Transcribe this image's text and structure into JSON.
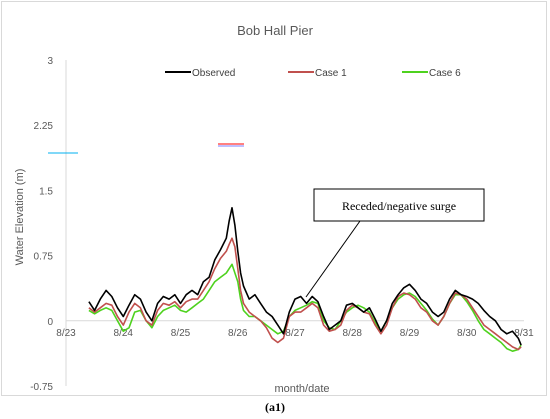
{
  "chart_data": {
    "type": "line",
    "title": "Bob Hall Pier",
    "xlabel": "month/date",
    "ylabel": "Water Elevation (m)",
    "ylim": [
      -0.75,
      3
    ],
    "yticks": [
      "3",
      "2.25",
      "1.5",
      "0.75",
      "0",
      "-0.75"
    ],
    "ytick_values": [
      3,
      2.25,
      1.5,
      0.75,
      0,
      -0.75
    ],
    "xlim": [
      0,
      8
    ],
    "xticks": [
      "8/23",
      "8/24",
      "8/25",
      "8/26",
      "8/27",
      "8/28",
      "8/29",
      "8/30",
      "8/31"
    ],
    "legend_position": "top",
    "annotation": "Receded/negative surge",
    "series": [
      {
        "name": "Observed",
        "color": "#000000",
        "x": [
          0.4,
          0.5,
          0.6,
          0.7,
          0.8,
          0.9,
          1.0,
          1.1,
          1.2,
          1.3,
          1.4,
          1.5,
          1.6,
          1.7,
          1.8,
          1.9,
          2.0,
          2.1,
          2.2,
          2.3,
          2.4,
          2.5,
          2.6,
          2.7,
          2.8,
          2.85,
          2.9,
          2.95,
          3.0,
          3.05,
          3.1,
          3.2,
          3.3,
          3.4,
          3.5,
          3.6,
          3.7,
          3.8,
          3.9,
          4.0,
          4.1,
          4.2,
          4.3,
          4.4,
          4.5,
          4.6,
          4.7,
          4.8,
          4.9,
          5.0,
          5.1,
          5.2,
          5.3,
          5.4,
          5.5,
          5.6,
          5.7,
          5.8,
          5.9,
          6.0,
          6.1,
          6.2,
          6.3,
          6.4,
          6.5,
          6.6,
          6.7,
          6.8,
          6.9,
          7.0,
          7.1,
          7.2,
          7.3,
          7.4,
          7.5,
          7.6,
          7.7,
          7.8,
          7.9,
          7.95
        ],
        "y": [
          0.22,
          0.12,
          0.25,
          0.35,
          0.28,
          0.15,
          0.05,
          0.18,
          0.3,
          0.25,
          0.1,
          0.0,
          0.2,
          0.28,
          0.25,
          0.3,
          0.2,
          0.3,
          0.35,
          0.3,
          0.45,
          0.5,
          0.7,
          0.82,
          0.95,
          1.15,
          1.3,
          1.1,
          0.8,
          0.55,
          0.4,
          0.25,
          0.3,
          0.2,
          0.1,
          0.05,
          -0.05,
          -0.15,
          0.1,
          0.25,
          0.28,
          0.2,
          0.28,
          0.22,
          0.05,
          -0.1,
          -0.05,
          0.0,
          0.18,
          0.2,
          0.15,
          0.1,
          0.15,
          0.02,
          -0.12,
          0.0,
          0.2,
          0.3,
          0.38,
          0.42,
          0.35,
          0.25,
          0.2,
          0.1,
          0.05,
          0.1,
          0.25,
          0.35,
          0.3,
          0.28,
          0.25,
          0.2,
          0.12,
          0.05,
          0.0,
          -0.1,
          -0.15,
          -0.12,
          -0.2,
          -0.28
        ]
      },
      {
        "name": "Case 1",
        "color": "#c0504d",
        "x": [
          0.4,
          0.5,
          0.6,
          0.7,
          0.8,
          0.9,
          1.0,
          1.1,
          1.2,
          1.3,
          1.4,
          1.5,
          1.6,
          1.7,
          1.8,
          1.9,
          2.0,
          2.1,
          2.2,
          2.3,
          2.4,
          2.5,
          2.6,
          2.7,
          2.8,
          2.85,
          2.9,
          2.95,
          3.0,
          3.05,
          3.1,
          3.2,
          3.3,
          3.4,
          3.5,
          3.6,
          3.7,
          3.8,
          3.9,
          4.0,
          4.1,
          4.2,
          4.3,
          4.4,
          4.5,
          4.6,
          4.7,
          4.8,
          4.9,
          5.0,
          5.1,
          5.2,
          5.3,
          5.4,
          5.5,
          5.6,
          5.7,
          5.8,
          5.9,
          6.0,
          6.1,
          6.2,
          6.3,
          6.4,
          6.5,
          6.6,
          6.7,
          6.8,
          6.9,
          7.0,
          7.1,
          7.2,
          7.3,
          7.4,
          7.5,
          7.6,
          7.7,
          7.8,
          7.9,
          7.95
        ],
        "y": [
          0.15,
          0.1,
          0.15,
          0.2,
          0.18,
          0.05,
          -0.05,
          0.1,
          0.2,
          0.15,
          0.0,
          -0.05,
          0.12,
          0.2,
          0.18,
          0.22,
          0.15,
          0.22,
          0.25,
          0.25,
          0.35,
          0.45,
          0.6,
          0.72,
          0.8,
          0.88,
          0.95,
          0.85,
          0.6,
          0.35,
          0.2,
          0.1,
          0.05,
          0.0,
          -0.08,
          -0.2,
          -0.25,
          -0.2,
          0.05,
          0.1,
          0.1,
          0.15,
          0.2,
          0.15,
          -0.05,
          -0.12,
          -0.1,
          -0.05,
          0.12,
          0.18,
          0.15,
          0.1,
          0.08,
          -0.05,
          -0.15,
          -0.05,
          0.15,
          0.28,
          0.32,
          0.3,
          0.25,
          0.15,
          0.1,
          0.0,
          -0.05,
          0.05,
          0.2,
          0.32,
          0.3,
          0.25,
          0.15,
          0.05,
          -0.05,
          -0.1,
          -0.15,
          -0.2,
          -0.25,
          -0.3,
          -0.33,
          -0.3
        ]
      },
      {
        "name": "Case 6",
        "color": "#4ed21e",
        "x": [
          0.4,
          0.5,
          0.6,
          0.7,
          0.8,
          0.9,
          1.0,
          1.1,
          1.2,
          1.3,
          1.4,
          1.5,
          1.6,
          1.7,
          1.8,
          1.9,
          2.0,
          2.1,
          2.2,
          2.3,
          2.4,
          2.5,
          2.6,
          2.7,
          2.8,
          2.85,
          2.9,
          2.95,
          3.0,
          3.05,
          3.1,
          3.2,
          3.3,
          3.4,
          3.5,
          3.6,
          3.7,
          3.8,
          3.9,
          4.0,
          4.1,
          4.2,
          4.3,
          4.4,
          4.5,
          4.6,
          4.7,
          4.8,
          4.9,
          5.0,
          5.1,
          5.2,
          5.3,
          5.4,
          5.5,
          5.6,
          5.7,
          5.8,
          5.9,
          6.0,
          6.1,
          6.2,
          6.3,
          6.4,
          6.5,
          6.6,
          6.7,
          6.8,
          6.9,
          7.0,
          7.1,
          7.2,
          7.3,
          7.4,
          7.5,
          7.6,
          7.7,
          7.8,
          7.9,
          7.95
        ],
        "y": [
          0.12,
          0.08,
          0.12,
          0.15,
          0.12,
          0.0,
          -0.12,
          -0.08,
          0.1,
          0.12,
          0.0,
          -0.08,
          0.05,
          0.12,
          0.15,
          0.18,
          0.12,
          0.1,
          0.15,
          0.2,
          0.25,
          0.35,
          0.45,
          0.5,
          0.55,
          0.6,
          0.65,
          0.55,
          0.45,
          0.25,
          0.12,
          0.05,
          0.05,
          0.0,
          -0.05,
          -0.1,
          -0.15,
          -0.12,
          0.05,
          0.12,
          0.15,
          0.18,
          0.22,
          0.2,
          0.0,
          -0.08,
          -0.1,
          0.0,
          0.1,
          0.15,
          0.18,
          0.15,
          0.1,
          -0.02,
          -0.12,
          0.0,
          0.15,
          0.25,
          0.3,
          0.32,
          0.28,
          0.2,
          0.12,
          0.02,
          -0.05,
          0.05,
          0.2,
          0.3,
          0.3,
          0.22,
          0.12,
          0.0,
          -0.1,
          -0.15,
          -0.2,
          -0.25,
          -0.32,
          -0.35,
          -0.33,
          -0.28
        ]
      }
    ]
  },
  "caption": "(a1)"
}
